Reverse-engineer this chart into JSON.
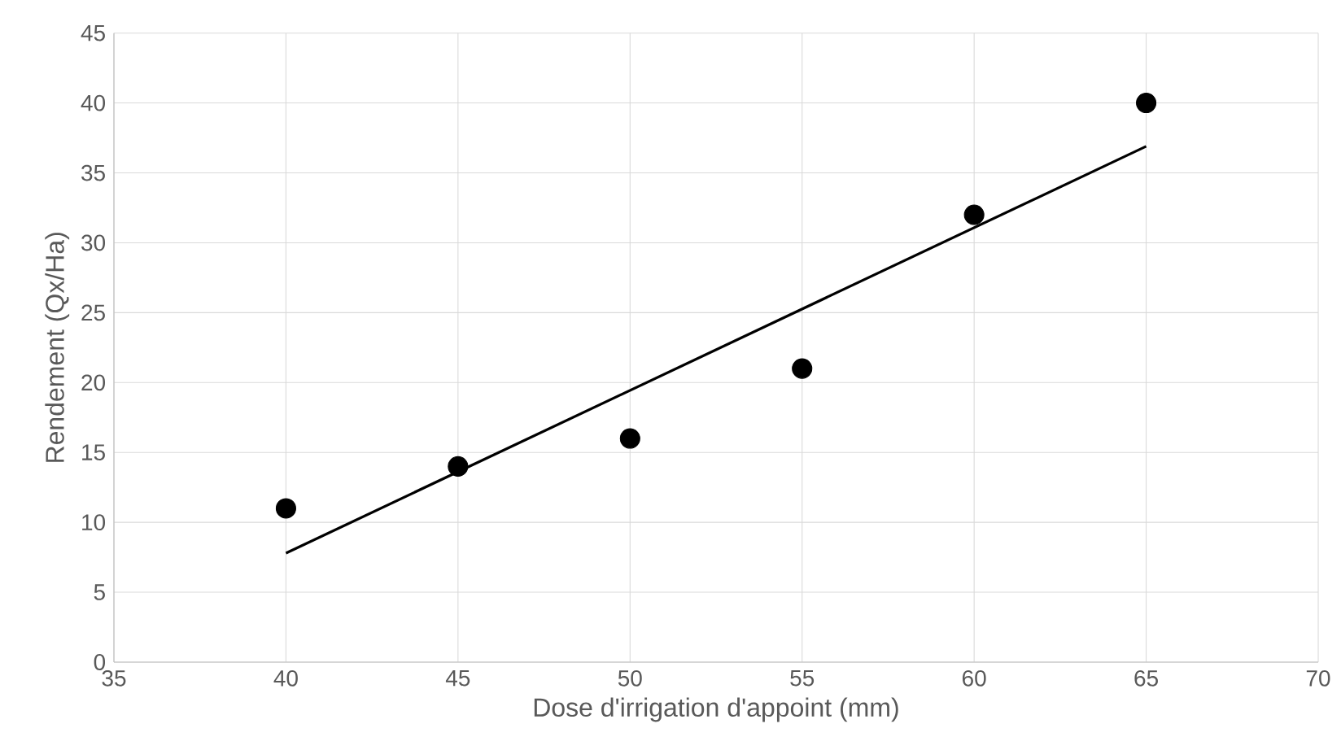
{
  "chart_data": {
    "type": "scatter",
    "xlabel": "Dose d'irrigation d'appoint (mm)",
    "ylabel": "Rendement (Qx/Ha)",
    "xlim": [
      35,
      70
    ],
    "xticks": [
      35,
      40,
      45,
      50,
      55,
      60,
      65,
      70
    ],
    "ylim": [
      0,
      45
    ],
    "yticks": [
      0,
      5,
      10,
      15,
      20,
      25,
      30,
      35,
      40,
      45
    ],
    "grid": true,
    "series": [
      {
        "marker": "circle",
        "color": "#000000",
        "x": [
          40,
          45,
          50,
          55,
          60,
          65
        ],
        "values": [
          11,
          14,
          16,
          21,
          32,
          40
        ]
      },
      {
        "type": "line",
        "color": "#000000",
        "line_style": "solid",
        "x": [
          40,
          65
        ],
        "values": [
          7.8,
          36.9
        ]
      }
    ]
  }
}
